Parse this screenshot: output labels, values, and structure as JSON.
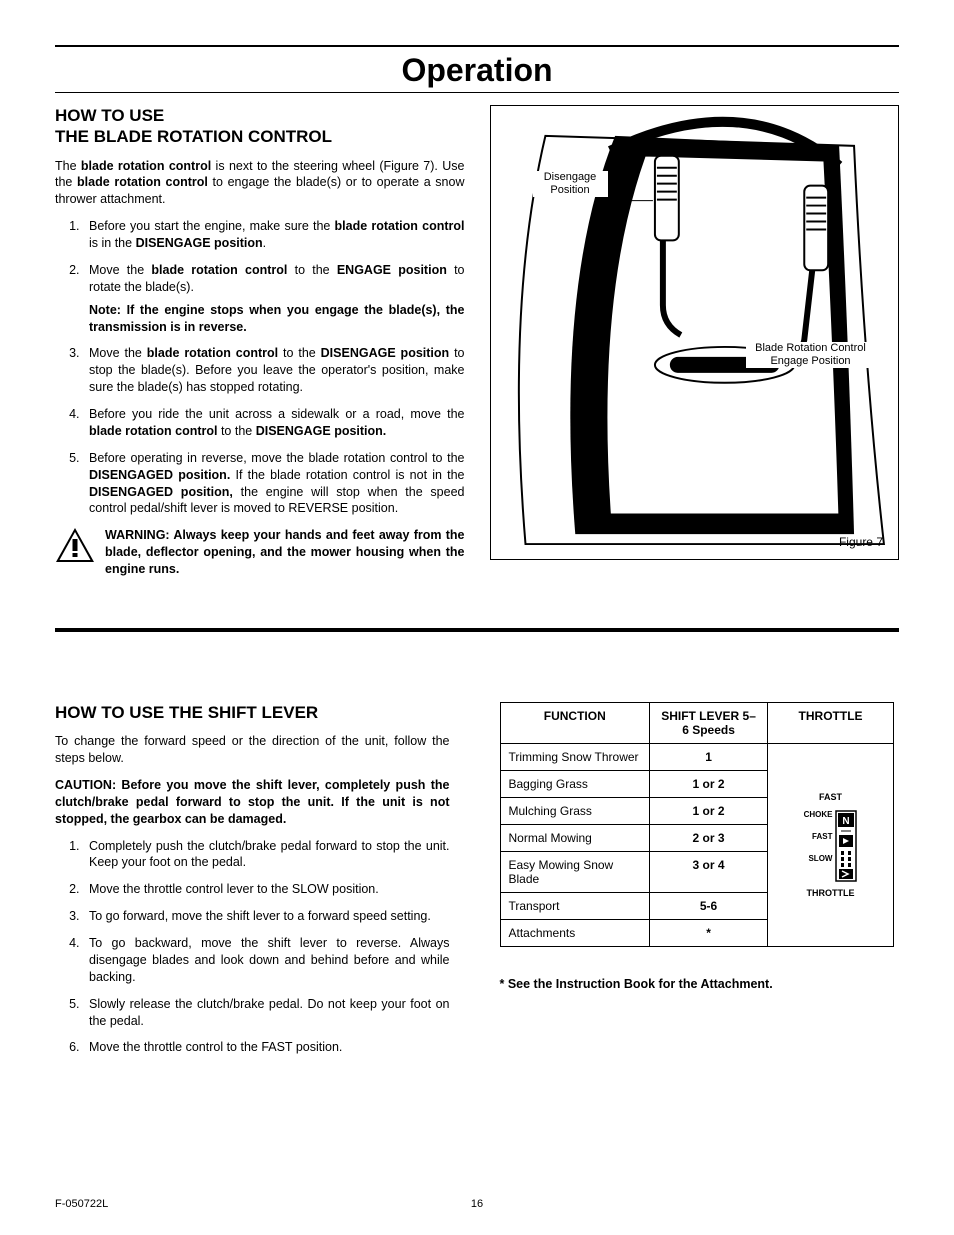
{
  "main_title": "Operation",
  "section1": {
    "heading_line1": "HOW TO USE",
    "heading_line2": "THE BLADE ROTATION CONTROL",
    "intro": "The <b>blade rotation control</b> is next to the steering wheel (Figure 7). Use the <b>blade rotation control</b> to engage the blade(s) or to operate a snow thrower attachment.",
    "steps": [
      "Before you start the engine, make sure the <b>blade rotation control</b> is in the <b>DISENGAGE position</b>.",
      "Move the <b>blade rotation control</b>  to the <b>ENGAGE position</b> to rotate the blade(s).",
      "Move the <b>blade rotation control</b> to the <b>DISENGAGE position</b> to stop the blade(s). Before you leave the operator's position, make sure the blade(s) has stopped rotating.",
      "Before you ride the unit across a sidewalk or a road, move the <b>blade rotation control</b> to the <b>DISENGAGE position.</b>",
      "Before operating in reverse, move the blade rotation control to the <b>DISENGAGED position.</b> If the blade rotation control is not in the <b>DISENGAGED position,</b> the engine will stop when the speed control pedal/shift lever is moved to REVERSE position."
    ],
    "note_after_step2": "Note: If the engine stops when you engage the blade(s), the transmission is in reverse.",
    "warning": "WARNING: Always keep your hands and feet away from the blade, deflector opening, and the mower housing when the engine runs."
  },
  "figure": {
    "label_disengage": "Disengage Position",
    "label_engage": "Blade Rotation Control Engage Position",
    "caption": "Figure 7"
  },
  "section2": {
    "heading": "HOW TO USE THE SHIFT LEVER",
    "intro": "To change the forward speed or the direction of the unit, follow the steps below.",
    "caution": "CAUTION: Before you move the shift lever, completely push the clutch/brake pedal forward to stop the unit. If the unit is not stopped, the gearbox can be damaged.",
    "steps": [
      "Completely push the clutch/brake pedal forward to stop the unit. Keep your foot on the pedal.",
      "Move the throttle control lever to the SLOW position.",
      "To go forward, move the shift lever to a forward speed setting.",
      "To go backward, move the shift lever to reverse. Always disengage blades and look down and behind before and while backing.",
      "Slowly release the clutch/brake pedal. Do not keep your foot on the pedal.",
      "Move the throttle control to the FAST position."
    ]
  },
  "table": {
    "headers": {
      "function": "FUNCTION",
      "lever": "SHIFT LEVER 5–6 Speeds",
      "throttle": "THROTTLE"
    },
    "rows": [
      {
        "function": "Trimming Snow Thrower",
        "lever": "1"
      },
      {
        "function": "Bagging Grass",
        "lever": "1 or 2"
      },
      {
        "function": "Mulching Grass",
        "lever": "1 or 2"
      },
      {
        "function": "Normal Mowing",
        "lever": "2 or 3"
      },
      {
        "function": "Easy Mowing Snow Blade",
        "lever": "3 or 4"
      },
      {
        "function": "Transport",
        "lever": "5-6"
      },
      {
        "function": "Attachments",
        "lever": "*"
      }
    ],
    "throttle_labels": {
      "fast_top": "FAST",
      "choke": "CHOKE",
      "fast": "FAST",
      "slow": "SLOW",
      "throttle": "THROTTLE"
    },
    "note": "* See the Instruction Book for the Attachment."
  },
  "footer": {
    "doc_id": "F-050722L",
    "page_num": "16"
  },
  "colors": {
    "text": "#000000",
    "bg": "#ffffff"
  }
}
